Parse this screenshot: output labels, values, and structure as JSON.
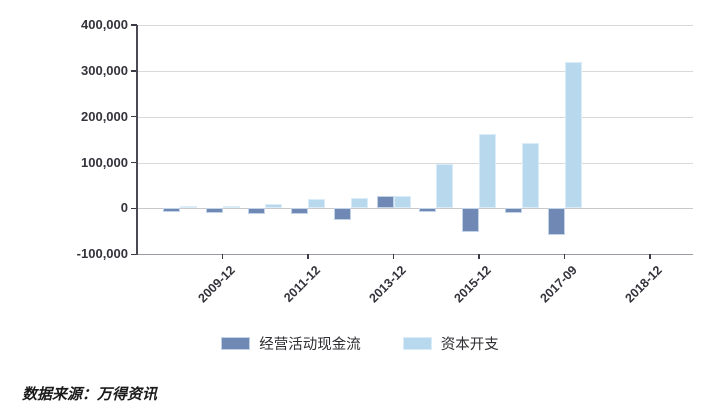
{
  "chart": {
    "background": "#ffffff",
    "axis_color": "#4a4a55",
    "x_axis_color": "#9a9aa0",
    "gridline_color": "#d9d9d9",
    "zero_line_color": "#c9c9c9",
    "tick_color": "#3a3a44",
    "source_note": "数据来源：万得资讯"
  },
  "chart_data": {
    "type": "bar",
    "title": "",
    "xlabel": "",
    "ylabel": "",
    "grid": true,
    "legend_position": "bottom",
    "ylim": [
      -100000,
      400000
    ],
    "y_tick_step": 100000,
    "y_tick_labels_top_to_bottom": [
      "400,000",
      "300,000",
      "200,000",
      "100,000",
      "0",
      "-100,000"
    ],
    "slots": 12,
    "x_ticks": [
      {
        "slot": 2,
        "label": "2009-12"
      },
      {
        "slot": 4,
        "label": "2011-12"
      },
      {
        "slot": 6,
        "label": "2013-12"
      },
      {
        "slot": 8,
        "label": "2015-12"
      },
      {
        "slot": 10,
        "label": "2017-09"
      },
      {
        "slot": 12,
        "label": "2018-12"
      }
    ],
    "series": [
      {
        "name": "经营活动现金流",
        "color": "#7089B4",
        "border_color": "#c2d3e8",
        "values": [
          -7000,
          -10000,
          -12000,
          -13000,
          -26000,
          27000,
          -8000,
          -51000,
          -11000,
          -57000,
          null,
          null
        ]
      },
      {
        "name": "资本开支",
        "color": "#B8D8EE",
        "border_color": "#d9ecf8",
        "values": [
          5000,
          5500,
          9000,
          21000,
          23500,
          26500,
          96000,
          162000,
          142000,
          319000,
          null,
          null
        ]
      }
    ]
  }
}
